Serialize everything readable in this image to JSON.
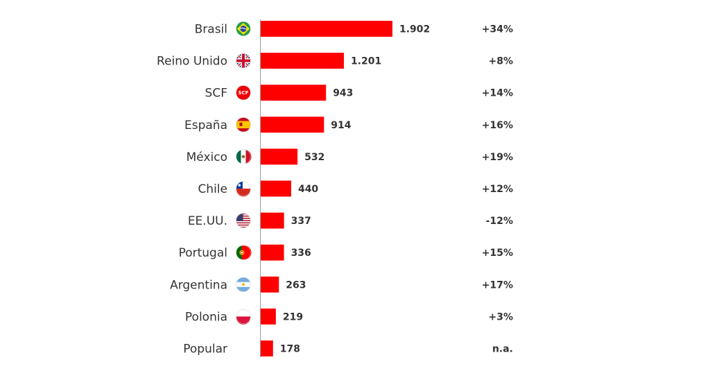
{
  "chart_data": {
    "type": "bar",
    "orientation": "horizontal",
    "categories": [
      "Brasil",
      "Reino Unido",
      "SCF",
      "España",
      "México",
      "Chile",
      "EE.UU.",
      "Portugal",
      "Argentina",
      "Polonia",
      "Popular"
    ],
    "values": [
      1902,
      1201,
      943,
      914,
      532,
      440,
      337,
      336,
      263,
      219,
      178
    ],
    "value_labels": [
      "1.902",
      "1.201",
      "943",
      "914",
      "532",
      "440",
      "337",
      "336",
      "263",
      "219",
      "178"
    ],
    "changes": [
      "+34%",
      "+8%",
      "+14%",
      "+16%",
      "+19%",
      "+12%",
      "-12%",
      "+15%",
      "+17%",
      "+3%",
      "n.a."
    ],
    "icons": [
      "brazil-flag-icon",
      "uk-flag-icon",
      "scf-logo-icon",
      "spain-flag-icon",
      "mexico-flag-icon",
      "chile-flag-icon",
      "usa-flag-icon",
      "portugal-flag-icon",
      "argentina-flag-icon",
      "poland-flag-icon",
      ""
    ],
    "scf_icon_text": "SCF",
    "bar_color": "#ff0000",
    "title": "",
    "xlabel": "",
    "ylabel": "",
    "xlim": [
      0,
      1902
    ],
    "grid": false,
    "legend": "none"
  }
}
